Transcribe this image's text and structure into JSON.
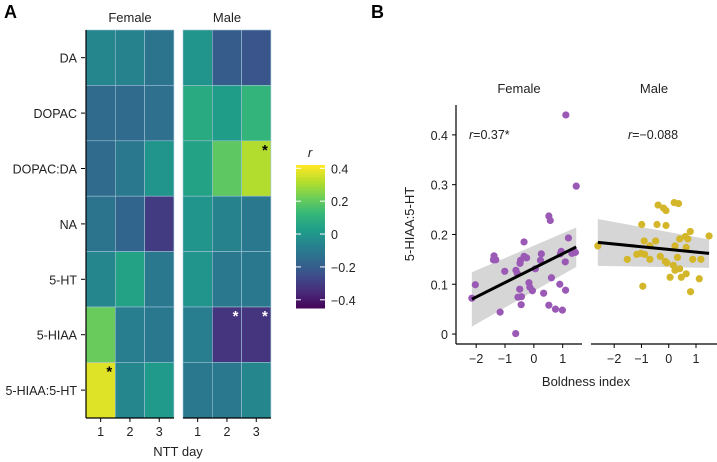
{
  "chart_data": [
    {
      "type": "heatmap",
      "panel_label": "A",
      "facets": [
        "Female",
        "Male"
      ],
      "rows": [
        "DA",
        "DOPAC",
        "DOPAC:DA",
        "NA",
        "5-HT",
        "5-HIAA",
        "5-HIAA:5-HT"
      ],
      "columns": [
        "1",
        "2",
        "3"
      ],
      "xlabel": "NTT day",
      "values": {
        "Female": [
          [
            -0.05,
            -0.06,
            -0.12
          ],
          [
            -0.15,
            -0.15,
            -0.13
          ],
          [
            -0.15,
            -0.1,
            0.0
          ],
          [
            -0.12,
            -0.17,
            -0.3
          ],
          [
            -0.05,
            0.05,
            -0.1
          ],
          [
            0.22,
            -0.08,
            -0.1
          ],
          [
            0.38,
            -0.05,
            0.02
          ]
        ],
        "Male": [
          [
            0.0,
            -0.2,
            -0.22
          ],
          [
            0.08,
            0.03,
            0.12
          ],
          [
            0.05,
            0.2,
            0.32
          ],
          [
            0.0,
            -0.06,
            -0.1
          ],
          [
            0.0,
            -0.1,
            -0.1
          ],
          [
            -0.08,
            -0.32,
            -0.32
          ],
          [
            -0.1,
            -0.1,
            -0.05
          ]
        ]
      },
      "significant": [
        {
          "facet": "Female",
          "row": "5-HIAA:5-HT",
          "col": "1",
          "label": "*",
          "color": "#000000"
        },
        {
          "facet": "Male",
          "row": "DOPAC:DA",
          "col": "3",
          "label": "*",
          "color": "#000000"
        },
        {
          "facet": "Male",
          "row": "5-HIAA",
          "col": "2",
          "label": "*",
          "color": "#ffffff"
        },
        {
          "facet": "Male",
          "row": "5-HIAA",
          "col": "3",
          "label": "*",
          "color": "#ffffff"
        }
      ],
      "colorbar": {
        "title": "r",
        "ticks": [
          "0.4",
          "0.2",
          "0",
          "−0.2",
          "−0.4"
        ],
        "tick_values": [
          0.4,
          0.2,
          0,
          -0.2,
          -0.4
        ],
        "range": [
          -0.45,
          0.42
        ],
        "colormap": "viridis"
      }
    },
    {
      "type": "scatter",
      "panel_label": "B",
      "facets": [
        "Female",
        "Male"
      ],
      "xlabel": "Boldness index",
      "ylabel": "5-HIAA:5-HT",
      "yticks": [
        "0",
        "0.1",
        "0.2",
        "0.3",
        "0.4"
      ],
      "ytick_values": [
        0,
        0.1,
        0.2,
        0.3,
        0.4
      ],
      "xticks": [
        "−2",
        "−1",
        "0",
        "1"
      ],
      "xtick_values": [
        -2,
        -1,
        0,
        1
      ],
      "ylim": [
        -0.02,
        0.46
      ],
      "series": [
        {
          "facet": "Female",
          "color": "#9b59b6",
          "annotation": "r=0.37*",
          "annotation_r": "r",
          "annotation_rest": "=0.37*",
          "xlim": [
            -2.7,
            1.67
          ],
          "fit": {
            "x": [
              -2.15,
              1.47
            ],
            "y": [
              0.07,
              0.175
            ],
            "ci_lower": [
              0.015,
              0.135
            ],
            "ci_upper": [
              0.124,
              0.214
            ]
          },
          "points": [
            [
              1.11,
              0.44
            ],
            [
              1.47,
              0.297
            ],
            [
              -2.15,
              0.072
            ],
            [
              -2.03,
              0.099
            ],
            [
              -1.38,
              0.157
            ],
            [
              -1.32,
              0.149
            ],
            [
              -1.4,
              0.149
            ],
            [
              -1.17,
              0.044
            ],
            [
              -1.01,
              0.126
            ],
            [
              -0.34,
              0.185
            ],
            [
              -0.63,
              0.001
            ],
            [
              -0.62,
              0.128
            ],
            [
              -0.57,
              0.121
            ],
            [
              -0.48,
              0.142
            ],
            [
              -0.46,
              0.148
            ],
            [
              -0.34,
              0.156
            ],
            [
              -0.25,
              0.153
            ],
            [
              -0.49,
              0.09
            ],
            [
              -0.55,
              0.074
            ],
            [
              -0.43,
              0.075
            ],
            [
              -0.44,
              0.059
            ],
            [
              -0.17,
              0.103
            ],
            [
              -0.14,
              0.094
            ],
            [
              -0.05,
              0.087
            ],
            [
              0.05,
              0.131
            ],
            [
              0.26,
              0.161
            ],
            [
              0.23,
              0.148
            ],
            [
              0.34,
              0.082
            ],
            [
              0.52,
              0.237
            ],
            [
              0.57,
              0.228
            ],
            [
              0.61,
              0.113
            ],
            [
              0.52,
              0.058
            ],
            [
              0.75,
              0.05
            ],
            [
              0.99,
              0.048
            ],
            [
              0.9,
              0.1
            ],
            [
              0.95,
              0.166
            ],
            [
              1.09,
              0.145
            ],
            [
              1.1,
              0.088
            ],
            [
              1.2,
              0.193
            ],
            [
              1.32,
              0.162
            ],
            [
              1.44,
              0.164
            ],
            [
              0.92,
              0.161
            ]
          ]
        },
        {
          "facet": "Male",
          "color": "#d4b62a",
          "annotation": "r=−0.088",
          "annotation_r": "r",
          "annotation_rest": "=−0.088",
          "xlim": [
            -2.85,
            1.77
          ],
          "fit": {
            "x": [
              -2.6,
              1.48
            ],
            "y": [
              0.184,
              0.162
            ],
            "ci_lower": [
              0.137,
              0.133
            ],
            "ci_upper": [
              0.231,
              0.19
            ]
          },
          "points": [
            [
              -2.6,
              0.177
            ],
            [
              -1.52,
              0.15
            ],
            [
              -0.99,
              0.22
            ],
            [
              -0.95,
              0.096
            ],
            [
              -0.9,
              0.187
            ],
            [
              -1.17,
              0.16
            ],
            [
              -1.02,
              0.162
            ],
            [
              -0.88,
              0.16
            ],
            [
              -0.69,
              0.15
            ],
            [
              -0.69,
              0.177
            ],
            [
              -0.48,
              0.187
            ],
            [
              -0.39,
              0.259
            ],
            [
              -0.19,
              0.253
            ],
            [
              -0.1,
              0.248
            ],
            [
              -0.43,
              0.22
            ],
            [
              -0.1,
              0.218
            ],
            [
              -0.31,
              0.156
            ],
            [
              -0.13,
              0.146
            ],
            [
              -0.07,
              0.143
            ],
            [
              0.2,
              0.264
            ],
            [
              0.36,
              0.262
            ],
            [
              0.23,
              0.177
            ],
            [
              0.4,
              0.191
            ],
            [
              0.32,
              0.154
            ],
            [
              0.17,
              0.138
            ],
            [
              0.23,
              0.128
            ],
            [
              0.4,
              0.131
            ],
            [
              0.05,
              0.114
            ],
            [
              0.46,
              0.114
            ],
            [
              0.64,
              0.121
            ],
            [
              0.61,
              0.196
            ],
            [
              0.79,
              0.206
            ],
            [
              0.7,
              0.191
            ],
            [
              0.64,
              0.174
            ],
            [
              0.88,
              0.15
            ],
            [
              1.18,
              0.15
            ],
            [
              1.12,
              0.111
            ],
            [
              0.8,
              0.085
            ],
            [
              1.48,
              0.197
            ]
          ]
        }
      ]
    }
  ]
}
